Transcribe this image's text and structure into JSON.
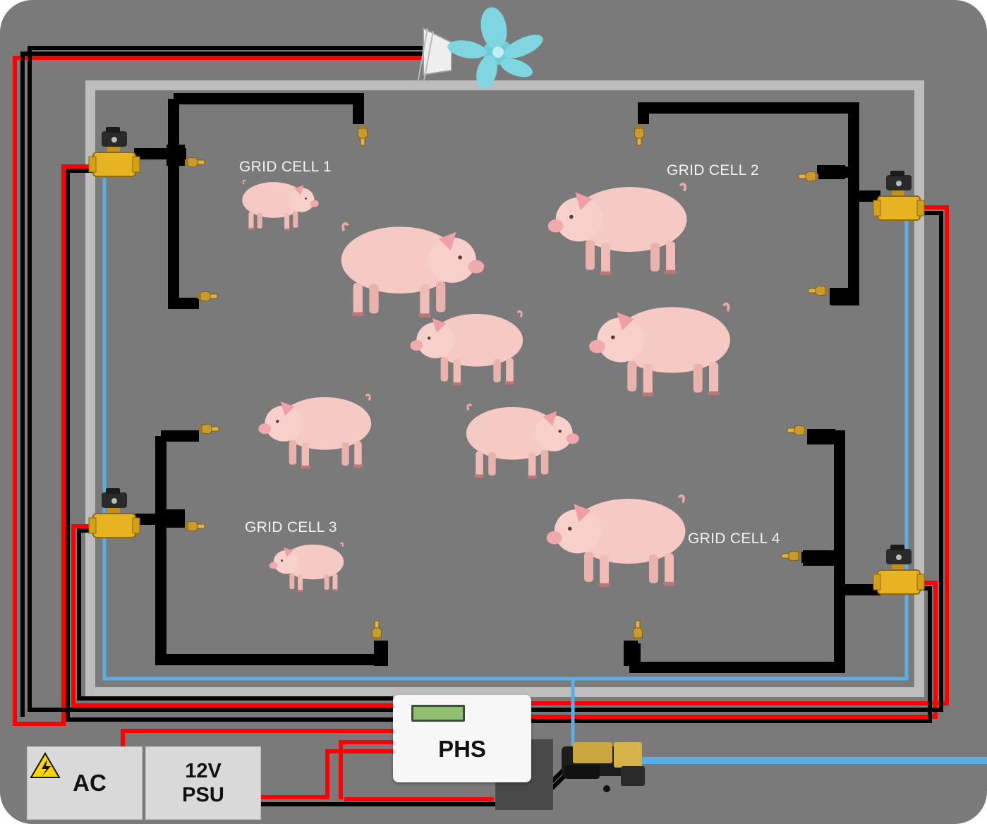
{
  "grid_cells": [
    {
      "label": "GRID CELL 1"
    },
    {
      "label": "GRID CELL 2"
    },
    {
      "label": "GRID CELL 3"
    },
    {
      "label": "GRID CELL 4"
    }
  ],
  "controller": {
    "label": "PHS"
  },
  "power": {
    "ac_label": "AC",
    "psu_line1": "12V",
    "psu_line2": "PSU"
  },
  "icons": {
    "fan": "ceiling-fan-icon",
    "valve": "solenoid-valve-icon",
    "nozzle": "mist-nozzle-icon",
    "pump": "water-pump-icon",
    "hazard": "high-voltage-warning-icon",
    "pig": "pig-image"
  },
  "colors": {
    "background": "#7a7a7a",
    "enclosure": "#bdbdbd",
    "power_positive": "#ff0000",
    "power_negative": "#000000",
    "water_line": "#5aaee8",
    "pipe": "#000000",
    "valve_brass": "#e6b422",
    "fan": "#7fd6e0",
    "pig": "#f5c9c4"
  }
}
